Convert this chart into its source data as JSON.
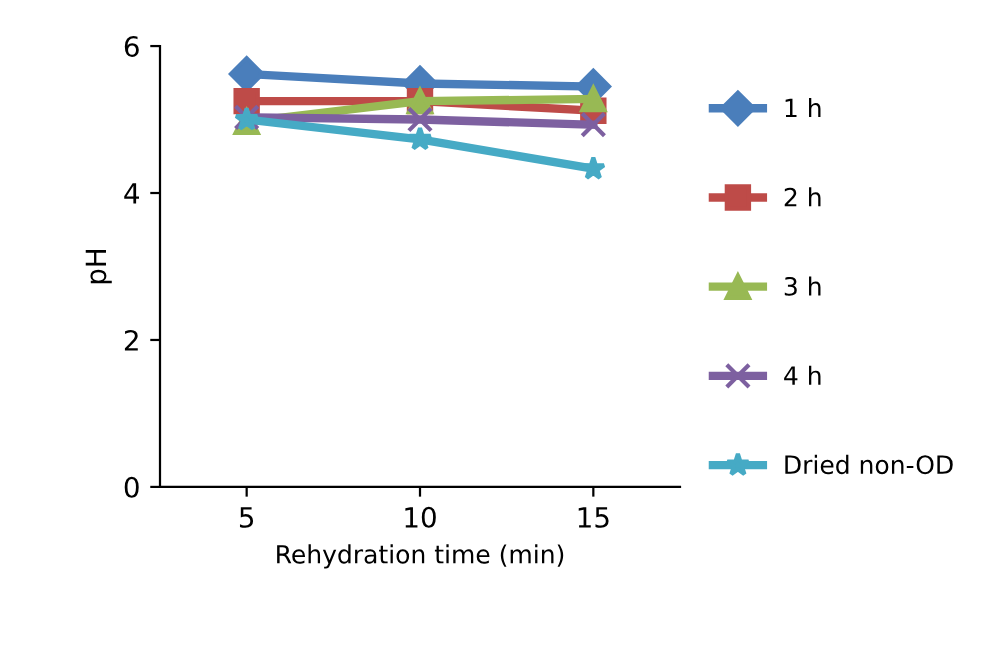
{
  "chart_data": {
    "type": "line",
    "xlabel": "Rehydration time (min)",
    "ylabel": "pH",
    "categories": [
      "5",
      "10",
      "15"
    ],
    "ylim": [
      0,
      6
    ],
    "yticks": [
      0,
      2,
      4,
      6
    ],
    "grid": false,
    "legend": "right",
    "series": [
      {
        "name": "1 h",
        "color": "#4a7ebb",
        "marker": "diamond",
        "values": [
          5.62,
          5.49,
          5.45
        ]
      },
      {
        "name": "2 h",
        "color": "#be4b48",
        "marker": "square",
        "values": [
          5.25,
          5.25,
          5.12
        ]
      },
      {
        "name": "3 h",
        "color": "#98b954",
        "marker": "triangle",
        "values": [
          4.97,
          5.25,
          5.28
        ]
      },
      {
        "name": "4 h",
        "color": "#7d60a0",
        "marker": "cross",
        "values": [
          5.03,
          5.0,
          4.93
        ]
      },
      {
        "name": "Dried non-OD",
        "color": "#46aac5",
        "marker": "star",
        "values": [
          5.0,
          4.73,
          4.33
        ]
      }
    ]
  }
}
